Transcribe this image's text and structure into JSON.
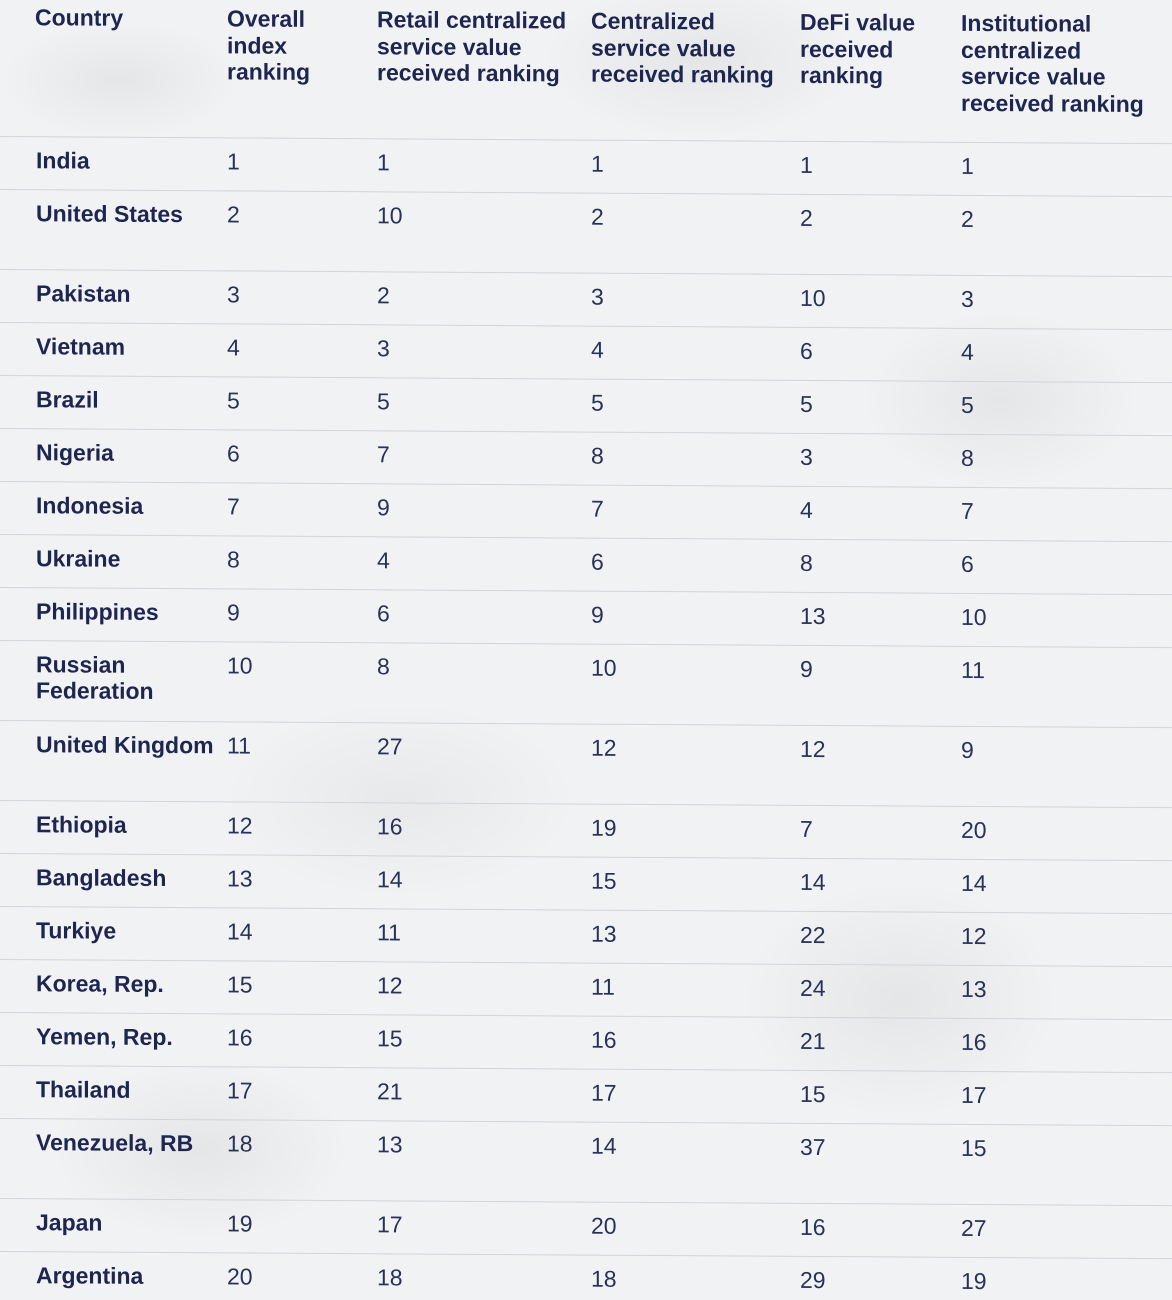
{
  "columns": [
    "Country",
    "Overall index ranking",
    "Retail centralized service value received ranking",
    "Centralized service value received ranking",
    "DeFi value received ranking",
    "Institutional centralized service value received ranking"
  ],
  "rows": [
    [
      "India",
      "1",
      "1",
      "1",
      "1",
      "1"
    ],
    [
      "United States",
      "2",
      "10",
      "2",
      "2",
      "2"
    ],
    [
      "Pakistan",
      "3",
      "2",
      "3",
      "10",
      "3"
    ],
    [
      "Vietnam",
      "4",
      "3",
      "4",
      "6",
      "4"
    ],
    [
      "Brazil",
      "5",
      "5",
      "5",
      "5",
      "5"
    ],
    [
      "Nigeria",
      "6",
      "7",
      "8",
      "3",
      "8"
    ],
    [
      "Indonesia",
      "7",
      "9",
      "7",
      "4",
      "7"
    ],
    [
      "Ukraine",
      "8",
      "4",
      "6",
      "8",
      "6"
    ],
    [
      "Philippines",
      "9",
      "6",
      "9",
      "13",
      "10"
    ],
    [
      "Russian Federation",
      "10",
      "8",
      "10",
      "9",
      "11"
    ],
    [
      "United Kingdom",
      "11",
      "27",
      "12",
      "12",
      "9"
    ],
    [
      "Ethiopia",
      "12",
      "16",
      "19",
      "7",
      "20"
    ],
    [
      "Bangladesh",
      "13",
      "14",
      "15",
      "14",
      "14"
    ],
    [
      "Turkiye",
      "14",
      "11",
      "13",
      "22",
      "12"
    ],
    [
      "Korea, Rep.",
      "15",
      "12",
      "11",
      "24",
      "13"
    ],
    [
      "Yemen, Rep.",
      "16",
      "15",
      "16",
      "21",
      "16"
    ],
    [
      "Thailand",
      "17",
      "21",
      "17",
      "15",
      "17"
    ],
    [
      "Venezuela, RB",
      "18",
      "13",
      "14",
      "37",
      "15"
    ],
    [
      "Japan",
      "19",
      "17",
      "20",
      "16",
      "27"
    ],
    [
      "Argentina",
      "20",
      "18",
      "18",
      "29",
      "19"
    ]
  ]
}
